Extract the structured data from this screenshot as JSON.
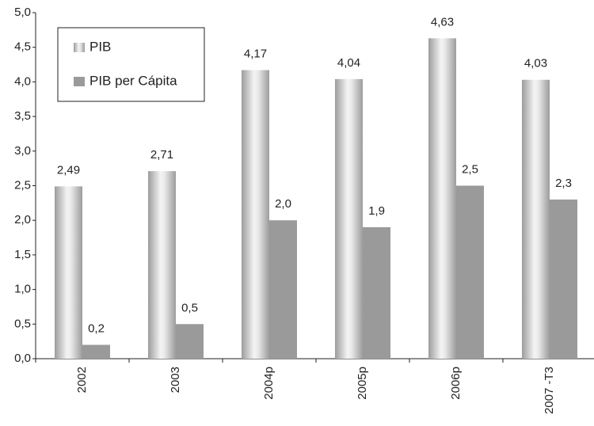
{
  "chart_data": {
    "type": "bar",
    "categories": [
      "2002",
      "2003",
      "2004p",
      "2005p",
      "2006p",
      "2007 -T3"
    ],
    "series": [
      {
        "name": "PIB",
        "color": "#9c9c9c",
        "values": [
          2.49,
          2.71,
          4.17,
          4.04,
          4.63,
          4.03
        ],
        "value_labels": [
          "2,49",
          "2,71",
          "4,17",
          "4,04",
          "4,63",
          "4,03"
        ]
      },
      {
        "name": "PIB per Cápita",
        "color": "#9a9a9a",
        "values": [
          0.2,
          0.5,
          2.0,
          1.9,
          2.5,
          2.3
        ],
        "value_labels": [
          "0,2",
          "0,5",
          "2,0",
          "1,9",
          "2,5",
          "2,3"
        ]
      }
    ],
    "ylim": [
      0,
      5
    ],
    "yticks": [
      {
        "value": 0,
        "label": "0,0"
      },
      {
        "value": 0.5,
        "label": "0,5"
      },
      {
        "value": 1,
        "label": "1,0"
      },
      {
        "value": 1.5,
        "label": "1,5"
      },
      {
        "value": 2,
        "label": "2,0"
      },
      {
        "value": 2.5,
        "label": "2,5"
      },
      {
        "value": 3,
        "label": "3,0"
      },
      {
        "value": 3.5,
        "label": "3,5"
      },
      {
        "value": 4,
        "label": "4,0"
      },
      {
        "value": 4.5,
        "label": "4,5"
      },
      {
        "value": 5,
        "label": "5,0"
      }
    ],
    "legend": "upper left"
  }
}
